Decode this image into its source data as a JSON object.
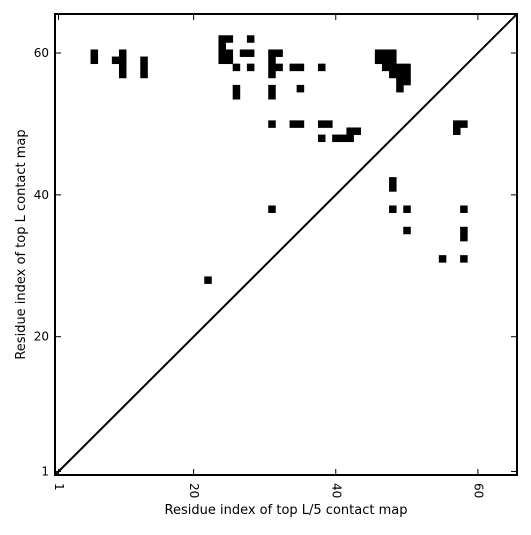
{
  "chart_data": {
    "type": "heatmap",
    "title": "",
    "xlabel": "Residue index of top L/5 contact map",
    "ylabel": "Residue index of top L contact map",
    "xlim": [
      0.5,
      65.5
    ],
    "ylim": [
      0.5,
      65.5
    ],
    "xticks": [
      1,
      20,
      40,
      60
    ],
    "yticks": [
      1,
      20,
      40,
      60
    ],
    "xtick_labels": [
      "1",
      "20",
      "40",
      "60"
    ],
    "ytick_labels": [
      "1",
      "20",
      "40",
      "60"
    ],
    "grid": false,
    "diagonal_line": [
      [
        0.5,
        0.5
      ],
      [
        65.5,
        65.5
      ]
    ],
    "cell_color": "#000000",
    "points": [
      [
        6,
        59
      ],
      [
        6,
        60
      ],
      [
        9,
        59
      ],
      [
        10,
        57
      ],
      [
        10,
        58
      ],
      [
        10,
        59
      ],
      [
        10,
        60
      ],
      [
        13,
        57
      ],
      [
        13,
        58
      ],
      [
        13,
        59
      ],
      [
        22,
        28
      ],
      [
        24,
        59
      ],
      [
        24,
        60
      ],
      [
        24,
        61
      ],
      [
        24,
        62
      ],
      [
        25,
        59
      ],
      [
        25,
        60
      ],
      [
        25,
        62
      ],
      [
        26,
        58
      ],
      [
        26,
        54
      ],
      [
        26,
        55
      ],
      [
        27,
        60
      ],
      [
        28,
        60
      ],
      [
        28,
        62
      ],
      [
        28,
        58
      ],
      [
        31,
        57
      ],
      [
        31,
        58
      ],
      [
        31,
        59
      ],
      [
        31,
        60
      ],
      [
        31,
        54
      ],
      [
        31,
        55
      ],
      [
        31,
        50
      ],
      [
        31,
        38
      ],
      [
        32,
        58
      ],
      [
        32,
        60
      ],
      [
        34,
        58
      ],
      [
        35,
        58
      ],
      [
        35,
        55
      ],
      [
        34,
        50
      ],
      [
        35,
        50
      ],
      [
        38,
        58
      ],
      [
        38,
        50
      ],
      [
        39,
        50
      ],
      [
        38,
        48
      ],
      [
        40,
        48
      ],
      [
        41,
        48
      ],
      [
        42,
        48
      ],
      [
        42,
        49
      ],
      [
        43,
        49
      ],
      [
        46,
        59
      ],
      [
        46,
        60
      ],
      [
        47,
        58
      ],
      [
        47,
        59
      ],
      [
        47,
        60
      ],
      [
        48,
        57
      ],
      [
        48,
        58
      ],
      [
        48,
        59
      ],
      [
        48,
        60
      ],
      [
        49,
        55
      ],
      [
        49,
        56
      ],
      [
        49,
        57
      ],
      [
        49,
        58
      ],
      [
        50,
        56
      ],
      [
        50,
        57
      ],
      [
        50,
        58
      ],
      [
        48,
        41
      ],
      [
        48,
        42
      ],
      [
        48,
        38
      ],
      [
        50,
        38
      ],
      [
        50,
        35
      ],
      [
        55,
        31
      ],
      [
        57,
        49
      ],
      [
        57,
        50
      ],
      [
        58,
        50
      ],
      [
        58,
        38
      ],
      [
        58,
        34
      ],
      [
        58,
        35
      ],
      [
        58,
        31
      ]
    ]
  }
}
